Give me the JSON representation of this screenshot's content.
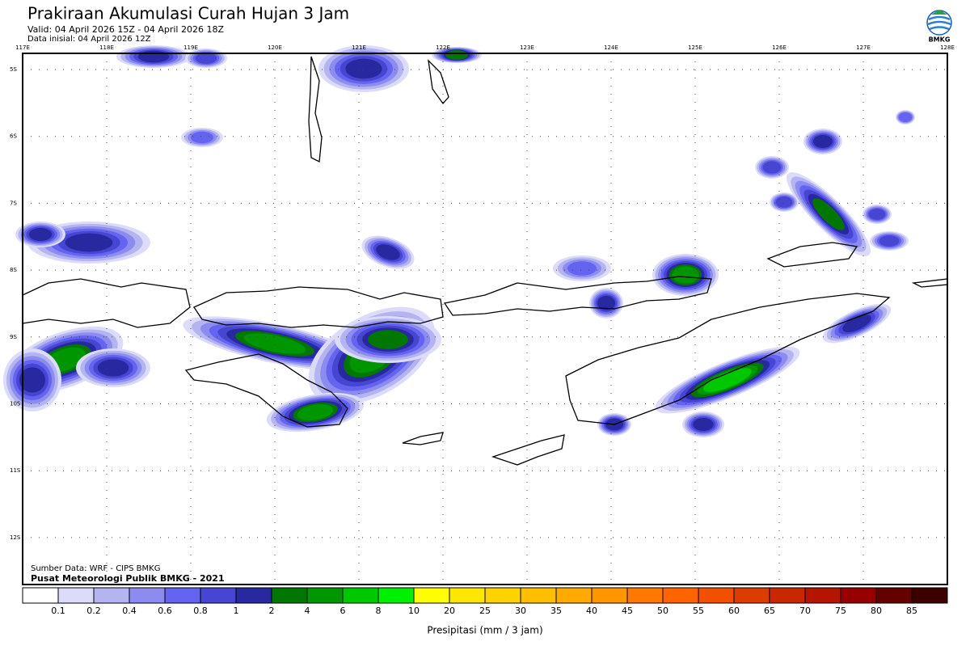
{
  "header": {
    "title": "Prakiraan Akumulasi Curah Hujan 3 Jam",
    "valid": "Valid: 04 April 2026 15Z - 04 April 2026 18Z",
    "initial": "Data inisial: 04 April 2026 12Z",
    "logo": "BMKG"
  },
  "map": {
    "lon_ticks": [
      {
        "value": 117,
        "label": "117E"
      },
      {
        "value": 118,
        "label": "118E"
      },
      {
        "value": 119,
        "label": "119E"
      },
      {
        "value": 120,
        "label": "120E"
      },
      {
        "value": 121,
        "label": "121E"
      },
      {
        "value": 122,
        "label": "122E"
      },
      {
        "value": 123,
        "label": "123E"
      },
      {
        "value": 124,
        "label": "124E"
      },
      {
        "value": 125,
        "label": "125E"
      },
      {
        "value": 126,
        "label": "126E"
      },
      {
        "value": 127,
        "label": "127E"
      },
      {
        "value": 128,
        "label": "128E"
      }
    ],
    "lat_ticks": [
      {
        "value": -5,
        "label": "5S"
      },
      {
        "value": -6,
        "label": "6S"
      },
      {
        "value": -7,
        "label": "7S"
      },
      {
        "value": -8,
        "label": "8S"
      },
      {
        "value": -9,
        "label": "9S"
      },
      {
        "value": -10,
        "label": "10S"
      },
      {
        "value": -11,
        "label": "11S"
      },
      {
        "value": -12,
        "label": "12S"
      }
    ],
    "source": "Sumber Data: WRF - CIPS BMKG",
    "credit": "Pusat Meteorologi Publik BMKG - 2021"
  },
  "legend": {
    "title": "Presipitasi (mm / 3 jam)",
    "levels": [
      0.1,
      0.2,
      0.4,
      0.6,
      0.8,
      1,
      2,
      4,
      6,
      8,
      10,
      20,
      25,
      30,
      35,
      40,
      45,
      50,
      55,
      60,
      65,
      70,
      75,
      80,
      85
    ],
    "colors": [
      "#ffffff",
      "#dcdcfa",
      "#b4b4f0",
      "#8c8cf0",
      "#6464f0",
      "#4646d2",
      "#2828a0",
      "#007800",
      "#009600",
      "#00c800",
      "#00f000",
      "#ffff00",
      "#ffe600",
      "#ffd200",
      "#ffbe00",
      "#ffaa00",
      "#ff9600",
      "#ff7800",
      "#ff6400",
      "#f05000",
      "#dc3c00",
      "#c82800",
      "#b41400",
      "#960000",
      "#640000",
      "#3c0000"
    ]
  }
}
